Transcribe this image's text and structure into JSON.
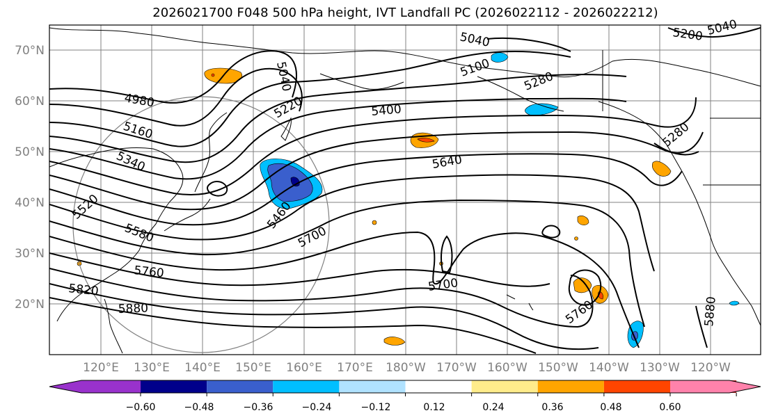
{
  "title": "2026021700 F048 500 hPa height, IVT Landfall PC (2026022112 - 2026022212)",
  "lat_labels": [
    "70°N",
    "60°N",
    "50°N",
    "40°N",
    "30°N",
    "20°N"
  ],
  "lon_labels": [
    "120°E",
    "130°E",
    "140°E",
    "150°E",
    "160°E",
    "170°E",
    "180°W",
    "170°W",
    "160°W",
    "150°W",
    "140°W",
    "130°W",
    "120°W"
  ],
  "contour_labels": [
    "5040",
    "5040",
    "5100",
    "5200",
    "5040",
    "4980",
    "5160",
    "5220",
    "5280",
    "5400",
    "5340",
    "5520",
    "5580",
    "5460",
    "5640",
    "5700",
    "5700",
    "5760",
    "5820",
    "5880",
    "5760",
    "5880",
    "5280"
  ],
  "colorbar": {
    "ticks": [
      "−0.60",
      "−0.48",
      "−0.36",
      "−0.24",
      "−0.12",
      "0.12",
      "0.24",
      "0.36",
      "0.48",
      "0.60"
    ],
    "colors": [
      "#9932CC",
      "#00008B",
      "#3A5FCD",
      "#00BFFF",
      "#B0E2FF",
      "#FFFFFF",
      "#FFEC8B",
      "#FFA500",
      "#FF4500",
      "#B22222",
      "#FF82AB"
    ]
  },
  "colors": {
    "frame": "#000000",
    "grid": "#808080",
    "contour": "#000000",
    "coast": "#000000",
    "circle": "#808080"
  }
}
